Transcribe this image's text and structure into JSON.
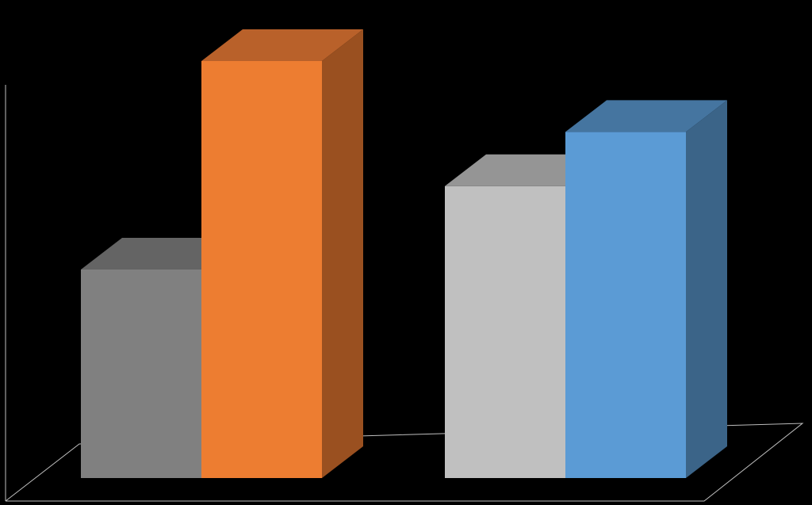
{
  "chart_data": {
    "type": "bar",
    "three_d": true,
    "categories": [
      "",
      ""
    ],
    "series": [
      {
        "values": [
          5,
          7
        ],
        "colors": [
          "#808080",
          "#C0C0C0"
        ]
      },
      {
        "values": [
          10,
          8.3
        ],
        "colors": [
          "#ED7D31",
          "#5B9BD5"
        ]
      }
    ],
    "ylim": [
      0,
      10
    ],
    "title": "",
    "xlabel": "",
    "ylabel": "",
    "grid": false,
    "legend": "none",
    "colors": {
      "background": "#000000",
      "axis_line": "#BFBFBF",
      "gray_front": "#808080",
      "gray_top": "#646464",
      "orange_front": "#ED7D31",
      "orange_top": "#B9612A",
      "orange_side": "#9A5020",
      "lightgray_front": "#C0C0C0",
      "lightgray_top": "#959595",
      "blue_front": "#5B9BD5",
      "blue_top": "#4575A0",
      "blue_side": "#3B6488"
    }
  }
}
